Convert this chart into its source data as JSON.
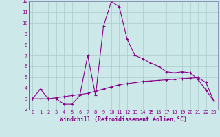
{
  "xlabel": "Windchill (Refroidissement éolien,°C)",
  "bg_color": "#cce8e8",
  "line_color": "#880088",
  "grid_color": "#aacccc",
  "x_line1": [
    0,
    1,
    2,
    3,
    4,
    5,
    6,
    7,
    8,
    9,
    10,
    11,
    12,
    13,
    14,
    15,
    16,
    17,
    18,
    19,
    20,
    21,
    22,
    23
  ],
  "y_line1": [
    3.0,
    3.9,
    3.0,
    3.0,
    2.5,
    2.5,
    3.3,
    7.0,
    3.3,
    9.7,
    12.0,
    11.5,
    8.5,
    7.0,
    6.7,
    6.3,
    6.0,
    5.5,
    5.4,
    5.5,
    5.4,
    4.8,
    3.8,
    2.8
  ],
  "x_line2": [
    0,
    1,
    2,
    3,
    4,
    5,
    6,
    7,
    8,
    9,
    10,
    11,
    12,
    13,
    14,
    15,
    16,
    17,
    18,
    19,
    20,
    21,
    22,
    23
  ],
  "y_line2": [
    3.0,
    3.0,
    3.0,
    3.1,
    3.2,
    3.3,
    3.4,
    3.5,
    3.7,
    3.9,
    4.1,
    4.3,
    4.4,
    4.5,
    4.6,
    4.65,
    4.7,
    4.75,
    4.8,
    4.85,
    4.9,
    4.95,
    4.5,
    2.8
  ],
  "xlim": [
    -0.5,
    23.5
  ],
  "ylim": [
    2,
    12
  ],
  "yticks": [
    2,
    3,
    4,
    5,
    6,
    7,
    8,
    9,
    10,
    11,
    12
  ],
  "xticks": [
    0,
    1,
    2,
    3,
    4,
    5,
    6,
    7,
    8,
    9,
    10,
    11,
    12,
    13,
    14,
    15,
    16,
    17,
    18,
    19,
    20,
    21,
    22,
    23
  ],
  "tick_label_fontsize": 5,
  "xlabel_fontsize": 6,
  "tick_color": "#880088",
  "axis_color": "#880088",
  "spine_color": "#7777aa"
}
